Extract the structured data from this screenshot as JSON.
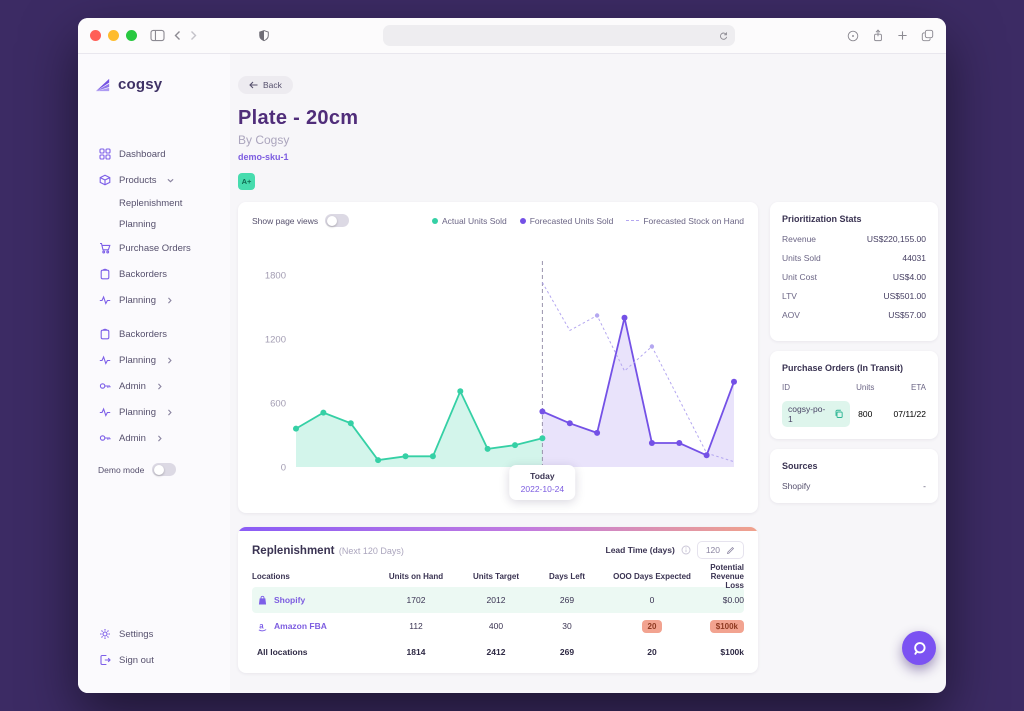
{
  "browser": {
    "url_value": "",
    "icons": [
      "sidebar-toggle",
      "back",
      "forward",
      "privacy-shield",
      "refresh",
      "page-zoom",
      "share",
      "new-tab",
      "show-tabs"
    ]
  },
  "sidebar": {
    "logo_text": "cogsy",
    "items": [
      {
        "label": "Dashboard",
        "icon": "dashboard"
      },
      {
        "label": "Products",
        "icon": "products",
        "chevron": "down"
      },
      {
        "label": "Replenishment",
        "sub": true
      },
      {
        "label": "Planning",
        "sub": true
      },
      {
        "label": "Purchase Orders",
        "icon": "cart"
      },
      {
        "label": "Backorders",
        "icon": "backorders"
      },
      {
        "label": "Planning",
        "icon": "planning",
        "chevron": "right"
      },
      {
        "label": "Backorders",
        "icon": "backorders",
        "gap": true
      },
      {
        "label": "Planning",
        "icon": "planning",
        "chevron": "right"
      },
      {
        "label": "Admin",
        "icon": "admin",
        "chevron": "right"
      },
      {
        "label": "Planning",
        "icon": "planning",
        "chevron": "right"
      },
      {
        "label": "Admin",
        "icon": "admin",
        "chevron": "right"
      }
    ],
    "demo_mode_label": "Demo mode",
    "footer": [
      {
        "label": "Settings",
        "icon": "settings"
      },
      {
        "label": "Sign out",
        "icon": "signout"
      }
    ]
  },
  "header": {
    "back_label": "Back",
    "title": "Plate - 20cm",
    "subtitle": "By Cogsy",
    "sku": "demo-sku-1",
    "grade_badge": "A+"
  },
  "chart_card": {
    "toggle_label": "Show page views",
    "legend": [
      {
        "label": "Actual Units Sold",
        "marker": "dot",
        "color": "#35d0a5"
      },
      {
        "label": "Forecasted Units Sold",
        "marker": "dot",
        "color": "#7451e6"
      },
      {
        "label": "Forecasted Stock on Hand",
        "marker": "dash",
        "color": "#b4a7f0"
      }
    ],
    "today_label": "Today",
    "today_date": "2022-10-24"
  },
  "chart_data": {
    "type": "line",
    "title": "",
    "xlabel": "",
    "ylabel": "",
    "ylim": [
      0,
      1800
    ],
    "yticks": [
      0,
      600,
      1200,
      1800
    ],
    "grid": false,
    "legend_position": "top-right",
    "total_points": 17,
    "today_index": 9,
    "today_date": "2022-10-24",
    "series": [
      {
        "name": "Actual Units Sold",
        "color": "#35d0a5",
        "fill": true,
        "fill_opacity": 0.22,
        "x": [
          0,
          1,
          2,
          3,
          4,
          5,
          6,
          7,
          8,
          9
        ],
        "values": [
          360,
          510,
          410,
          65,
          100,
          100,
          710,
          170,
          205,
          270
        ],
        "dots": "all"
      },
      {
        "name": "Forecasted Units Sold",
        "color": "#7451e6",
        "fill": true,
        "fill_opacity": 0.16,
        "x": [
          9,
          10,
          11,
          12,
          13,
          14,
          15,
          16
        ],
        "values": [
          520,
          410,
          320,
          1400,
          225,
          225,
          110,
          800
        ],
        "dots": "all"
      },
      {
        "name": "Forecasted Stock on Hand",
        "color": "#b4a7f0",
        "fill": false,
        "dashed": true,
        "x": [
          9,
          10,
          11,
          12,
          13,
          14,
          15,
          16
        ],
        "values": [
          1730,
          1280,
          1420,
          900,
          1130,
          630,
          130,
          50
        ],
        "dot_indices": [
          2,
          4
        ]
      }
    ]
  },
  "stats_card": {
    "title": "Prioritization Stats",
    "rows": [
      {
        "label": "Revenue",
        "value": "US$220,155.00"
      },
      {
        "label": "Units Sold",
        "value": "44031"
      },
      {
        "label": "Unit Cost",
        "value": "US$4.00"
      },
      {
        "label": "LTV",
        "value": "US$501.00"
      },
      {
        "label": "AOV",
        "value": "US$57.00"
      }
    ]
  },
  "po_card": {
    "title": "Purchase Orders (In Transit)",
    "columns": [
      "ID",
      "Units",
      "ETA"
    ],
    "rows": [
      {
        "id": "cogsy-po-1",
        "units": "800",
        "eta": "07/11/22"
      }
    ]
  },
  "sources_card": {
    "title": "Sources",
    "rows": [
      {
        "label": "Shopify",
        "value": "-"
      }
    ]
  },
  "replenishment": {
    "title": "Replenishment",
    "subtitle": "(Next 120 Days)",
    "lead_time_label": "Lead Time (days)",
    "lead_time_value": "120",
    "columns": [
      "Locations",
      "Units on Hand",
      "Units Target",
      "Days Left",
      "OOO Days Expected",
      "Potential Revenue Loss"
    ],
    "rows": [
      {
        "location": "Shopify",
        "icon": "shopify",
        "values": [
          "1702",
          "2012",
          "269",
          "0",
          "$0.00"
        ],
        "highlight": true,
        "total": false,
        "badge_cols": []
      },
      {
        "location": "Amazon FBA",
        "icon": "amazon",
        "values": [
          "112",
          "400",
          "30",
          "20",
          "$100k"
        ],
        "highlight": false,
        "total": false,
        "badge_cols": [
          3,
          4
        ]
      },
      {
        "location": "All locations",
        "icon": null,
        "values": [
          "1814",
          "2412",
          "269",
          "20",
          "$100k"
        ],
        "highlight": false,
        "total": true,
        "badge_cols": []
      }
    ]
  },
  "colors": {
    "accent_purple": "#7451e6",
    "brand_purple": "#7d5fe8",
    "teal": "#35d0a5",
    "light_purple": "#b4a7f0",
    "grade_badge_bg": "#47dcae",
    "grade_badge_text": "#0f6b52",
    "alert_badge_bg": "#f2a390",
    "alert_badge_text": "#8f3a22",
    "window_outer_bg": "#3c2b64",
    "replenish_gradient": [
      "#8a5cf6",
      "#f0a28c"
    ]
  }
}
